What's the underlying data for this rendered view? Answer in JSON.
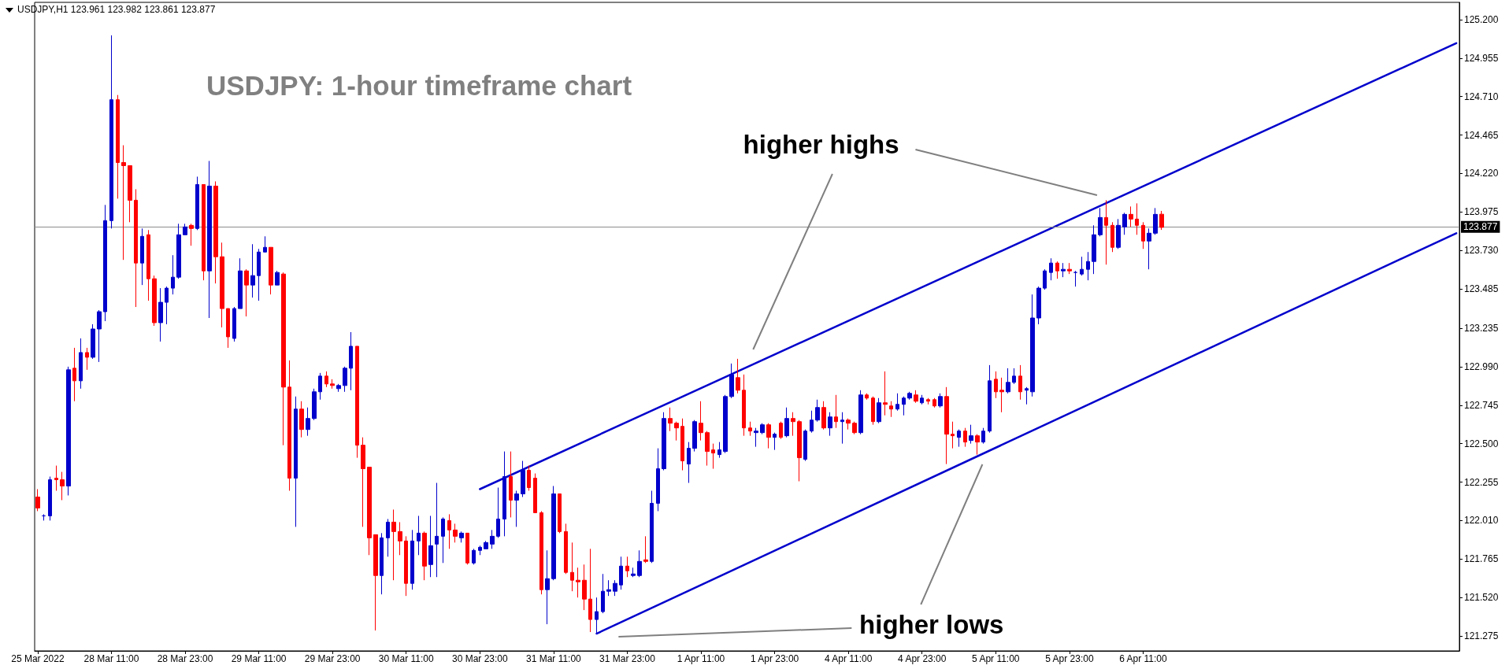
{
  "chart_data": {
    "type": "candlestick",
    "title": "USDJPY: 1-hour timeframe chart",
    "annotations": [
      "USDJPY,H1 123.961 123.982 123.861 123.877",
      "higher highs",
      "higher lows"
    ],
    "categories": [
      "25 Mar 2022",
      null,
      null,
      null,
      null,
      null,
      null,
      null,
      null,
      null,
      null,
      null,
      "28 Mar 11:00",
      null,
      null,
      null,
      null,
      null,
      null,
      null,
      null,
      null,
      null,
      null,
      "28 Mar 23:00",
      null,
      null,
      null,
      null,
      null,
      null,
      null,
      null,
      null,
      null,
      null,
      "29 Mar 11:00",
      null,
      null,
      null,
      null,
      null,
      null,
      null,
      null,
      null,
      null,
      null,
      "29 Mar 23:00",
      null,
      null,
      null,
      null,
      null,
      null,
      null,
      null,
      null,
      null,
      null,
      "30 Mar 11:00",
      null,
      null,
      null,
      null,
      null,
      null,
      null,
      null,
      null,
      null,
      null,
      "30 Mar 23:00",
      null,
      null,
      null,
      null,
      null,
      null,
      null,
      null,
      null,
      null,
      null,
      "31 Mar 11:00",
      null,
      null,
      null,
      null,
      null,
      null,
      null,
      null,
      null,
      null,
      null,
      "31 Mar 23:00",
      null,
      null,
      null,
      null,
      null,
      null,
      null,
      null,
      null,
      null,
      null,
      "1 Apr 11:00",
      null,
      null,
      null,
      null,
      null,
      null,
      null,
      null,
      null,
      null,
      null,
      "1 Apr 23:00",
      null,
      null,
      null,
      null,
      null,
      null,
      null,
      null,
      null,
      null,
      null,
      "4 Apr 11:00",
      null,
      null,
      null,
      null,
      null,
      null,
      null,
      null,
      null,
      null,
      null,
      "4 Apr 23:00",
      null,
      null,
      null,
      null,
      null,
      null,
      null,
      null,
      null,
      null,
      null,
      "5 Apr 11:00",
      null,
      null,
      null,
      null,
      null,
      null,
      null,
      null,
      null,
      null,
      null,
      "5 Apr 23:00",
      null,
      null,
      null,
      null,
      null,
      null,
      null,
      null,
      null,
      null,
      null,
      "6 Apr 11:00",
      null,
      null,
      null,
      null,
      null,
      null,
      null,
      null,
      null,
      null,
      null,
      null,
      null,
      null,
      null,
      null,
      null,
      null,
      null,
      null,
      null,
      null,
      null,
      null,
      null,
      null,
      null,
      null,
      null,
      null,
      null,
      null,
      null,
      null,
      null,
      null,
      null,
      null,
      null,
      null,
      null,
      null,
      null,
      null,
      null,
      null,
      null,
      null,
      null,
      null,
      null
    ],
    "ohlc": [
      [
        122.16,
        122.21,
        122.07,
        122.09
      ],
      [
        122.04,
        122.05,
        122.01,
        122.04
      ],
      [
        122.04,
        122.29,
        122.01,
        122.27
      ],
      [
        122.28,
        122.36,
        122.2,
        122.27
      ],
      [
        122.27,
        122.32,
        122.14,
        122.23
      ],
      [
        122.23,
        122.99,
        122.17,
        122.97
      ],
      [
        122.98,
        123.11,
        122.77,
        122.9
      ],
      [
        122.9,
        123.17,
        122.85,
        123.08
      ],
      [
        123.08,
        123.11,
        122.97,
        123.05
      ],
      [
        123.05,
        123.26,
        123.04,
        123.23
      ],
      [
        123.23,
        123.35,
        123.02,
        123.34
      ],
      [
        123.34,
        124.02,
        123.28,
        123.92
      ],
      [
        123.92,
        125.1,
        123.87,
        124.69
      ],
      [
        124.69,
        124.72,
        124.06,
        124.29
      ],
      [
        124.29,
        124.4,
        123.67,
        124.27
      ],
      [
        124.27,
        124.27,
        123.91,
        124.05
      ],
      [
        124.05,
        124.12,
        123.37,
        123.65
      ],
      [
        123.65,
        123.87,
        123.51,
        123.82
      ],
      [
        123.83,
        123.86,
        123.41,
        123.55
      ],
      [
        123.55,
        123.57,
        123.25,
        123.27
      ],
      [
        123.27,
        123.49,
        123.15,
        123.4
      ],
      [
        123.4,
        123.5,
        123.26,
        123.49
      ],
      [
        123.49,
        123.7,
        123.45,
        123.56
      ],
      [
        123.56,
        123.9,
        123.55,
        123.83
      ],
      [
        123.83,
        123.9,
        123.83,
        123.88
      ],
      [
        123.89,
        123.9,
        123.76,
        123.87
      ],
      [
        123.87,
        124.2,
        123.86,
        124.15
      ],
      [
        124.15,
        124.15,
        123.54,
        123.6
      ],
      [
        123.6,
        124.3,
        123.3,
        124.14
      ],
      [
        124.14,
        124.17,
        123.52,
        123.69
      ],
      [
        123.69,
        123.78,
        123.24,
        123.36
      ],
      [
        123.36,
        123.36,
        123.11,
        123.18
      ],
      [
        123.17,
        123.37,
        123.15,
        123.36
      ],
      [
        123.36,
        123.68,
        123.36,
        123.6
      ],
      [
        123.6,
        123.61,
        123.31,
        123.51
      ],
      [
        123.51,
        123.77,
        123.43,
        123.57
      ],
      [
        123.57,
        123.74,
        123.41,
        123.72
      ],
      [
        123.72,
        123.82,
        123.72,
        123.75
      ],
      [
        123.75,
        123.75,
        123.45,
        123.51
      ],
      [
        123.51,
        123.6,
        123.51,
        123.59
      ],
      [
        123.58,
        123.59,
        122.49,
        122.86
      ],
      [
        122.86,
        123.03,
        122.2,
        122.28
      ],
      [
        122.28,
        122.8,
        121.97,
        122.72
      ],
      [
        122.72,
        122.77,
        122.54,
        122.59
      ],
      [
        122.59,
        122.73,
        122.55,
        122.66
      ],
      [
        122.66,
        122.85,
        122.65,
        122.83
      ],
      [
        122.83,
        122.95,
        122.78,
        122.93
      ],
      [
        122.93,
        122.96,
        122.86,
        122.88
      ],
      [
        122.88,
        122.91,
        122.85,
        122.87
      ],
      [
        122.85,
        122.88,
        122.83,
        122.87
      ],
      [
        122.87,
        122.99,
        122.83,
        122.98
      ],
      [
        122.98,
        123.21,
        122.84,
        123.12
      ],
      [
        123.12,
        123.12,
        122.41,
        122.49
      ],
      [
        122.49,
        122.54,
        121.97,
        122.34
      ],
      [
        122.35,
        122.35,
        121.79,
        121.9
      ],
      [
        121.92,
        121.92,
        121.31,
        121.66
      ],
      [
        121.66,
        121.93,
        121.54,
        121.9
      ],
      [
        121.9,
        122.02,
        121.78,
        122.0
      ],
      [
        122.0,
        122.08,
        121.63,
        121.94
      ],
      [
        121.94,
        122.0,
        121.79,
        121.88
      ],
      [
        121.88,
        121.91,
        121.53,
        121.61
      ],
      [
        121.61,
        121.95,
        121.57,
        121.88
      ],
      [
        121.88,
        122.04,
        121.79,
        121.93
      ],
      [
        121.93,
        121.94,
        121.63,
        121.72
      ],
      [
        121.73,
        122.04,
        121.65,
        121.85
      ],
      [
        121.86,
        122.25,
        121.65,
        121.91
      ],
      [
        121.91,
        122.03,
        121.74,
        122.02
      ],
      [
        122.01,
        122.05,
        121.83,
        121.95
      ],
      [
        121.95,
        121.99,
        121.87,
        121.91
      ],
      [
        121.9,
        121.94,
        121.87,
        121.93
      ],
      [
        121.93,
        121.93,
        121.73,
        121.74
      ],
      [
        121.74,
        121.83,
        121.73,
        121.82
      ],
      [
        121.82,
        121.85,
        121.79,
        121.84
      ],
      [
        121.83,
        121.88,
        121.83,
        121.87
      ],
      [
        121.86,
        121.95,
        121.83,
        121.91
      ],
      [
        121.91,
        122.22,
        121.9,
        122.02
      ],
      [
        122.02,
        122.45,
        121.91,
        122.29
      ],
      [
        122.29,
        122.45,
        122.03,
        122.14
      ],
      [
        122.14,
        122.2,
        121.97,
        122.18
      ],
      [
        122.18,
        122.39,
        122.16,
        122.33
      ],
      [
        122.33,
        122.36,
        122.2,
        122.22
      ],
      [
        122.28,
        122.31,
        122.06,
        122.06
      ],
      [
        122.06,
        122.07,
        121.54,
        121.57
      ],
      [
        121.57,
        121.82,
        121.35,
        121.64
      ],
      [
        121.64,
        122.23,
        121.63,
        122.18
      ],
      [
        122.18,
        122.18,
        121.93,
        121.94
      ],
      [
        121.94,
        121.99,
        121.67,
        121.68
      ],
      [
        121.68,
        121.87,
        121.56,
        121.63
      ],
      [
        121.63,
        121.71,
        121.52,
        121.62
      ],
      [
        121.63,
        121.73,
        121.44,
        121.51
      ],
      [
        121.51,
        121.83,
        121.3,
        121.38
      ],
      [
        121.38,
        121.52,
        121.29,
        121.43
      ],
      [
        121.43,
        121.67,
        121.42,
        121.56
      ],
      [
        121.56,
        121.63,
        121.53,
        121.57
      ],
      [
        121.56,
        121.63,
        121.53,
        121.61
      ],
      [
        121.6,
        121.78,
        121.57,
        121.72
      ],
      [
        121.72,
        121.78,
        121.65,
        121.69
      ],
      [
        121.66,
        121.71,
        121.65,
        121.67
      ],
      [
        121.66,
        121.82,
        121.65,
        121.75
      ],
      [
        121.76,
        121.91,
        121.74,
        121.75
      ],
      [
        121.75,
        122.2,
        121.74,
        122.12
      ],
      [
        122.12,
        122.47,
        122.07,
        122.34
      ],
      [
        122.34,
        122.7,
        122.33,
        122.66
      ],
      [
        122.66,
        122.73,
        122.58,
        122.63
      ],
      [
        122.63,
        122.64,
        122.52,
        122.6
      ],
      [
        122.61,
        122.66,
        122.33,
        122.39
      ],
      [
        122.37,
        122.51,
        122.25,
        122.47
      ],
      [
        122.47,
        122.65,
        122.45,
        122.64
      ],
      [
        122.63,
        122.77,
        122.52,
        122.57
      ],
      [
        122.57,
        122.58,
        122.36,
        122.45
      ],
      [
        122.46,
        122.5,
        122.34,
        122.44
      ],
      [
        122.43,
        122.51,
        122.41,
        122.46
      ],
      [
        122.45,
        122.81,
        122.44,
        122.8
      ],
      [
        122.8,
        123.01,
        122.79,
        122.94
      ],
      [
        122.92,
        123.04,
        122.82,
        122.84
      ],
      [
        122.84,
        122.94,
        122.55,
        122.6
      ],
      [
        122.6,
        122.64,
        122.55,
        122.58
      ],
      [
        122.57,
        122.6,
        122.48,
        122.58
      ],
      [
        122.57,
        122.63,
        122.56,
        122.62
      ],
      [
        122.62,
        122.63,
        122.47,
        122.54
      ],
      [
        122.54,
        122.57,
        122.46,
        122.56
      ],
      [
        122.63,
        122.64,
        122.53,
        122.54
      ],
      [
        122.55,
        122.73,
        122.54,
        122.66
      ],
      [
        122.66,
        122.7,
        122.55,
        122.64
      ],
      [
        122.64,
        122.65,
        122.26,
        122.41
      ],
      [
        122.4,
        122.59,
        122.39,
        122.58
      ],
      [
        122.58,
        122.71,
        122.57,
        122.65
      ],
      [
        122.65,
        122.78,
        122.64,
        122.73
      ],
      [
        122.73,
        122.77,
        122.59,
        122.6
      ],
      [
        122.6,
        122.7,
        122.55,
        122.67
      ],
      [
        122.67,
        122.81,
        122.6,
        122.64
      ],
      [
        122.64,
        122.7,
        122.5,
        122.65
      ],
      [
        122.65,
        122.66,
        122.59,
        122.63
      ],
      [
        122.63,
        122.64,
        122.56,
        122.57
      ],
      [
        122.57,
        122.84,
        122.56,
        122.81
      ],
      [
        122.81,
        122.82,
        122.78,
        122.79
      ],
      [
        122.79,
        122.8,
        122.62,
        122.64
      ],
      [
        122.64,
        122.79,
        122.63,
        122.76
      ],
      [
        122.76,
        122.96,
        122.68,
        122.75
      ],
      [
        122.74,
        122.77,
        122.67,
        122.72
      ],
      [
        122.72,
        122.82,
        122.71,
        122.75
      ],
      [
        122.75,
        122.8,
        122.68,
        122.79
      ],
      [
        122.79,
        122.83,
        122.78,
        122.82
      ],
      [
        122.81,
        122.84,
        122.76,
        122.77
      ],
      [
        122.76,
        122.81,
        122.75,
        122.79
      ],
      [
        122.78,
        122.79,
        122.75,
        122.77
      ],
      [
        122.78,
        122.79,
        122.73,
        122.74
      ],
      [
        122.74,
        122.82,
        122.73,
        122.8
      ],
      [
        122.8,
        122.86,
        122.37,
        122.56
      ],
      [
        122.56,
        122.64,
        122.47,
        122.55
      ],
      [
        122.54,
        122.59,
        122.48,
        122.58
      ],
      [
        122.58,
        122.6,
        122.48,
        122.51
      ],
      [
        122.52,
        122.62,
        122.5,
        122.55
      ],
      [
        122.55,
        122.56,
        122.43,
        122.51
      ],
      [
        122.51,
        122.6,
        122.5,
        122.58
      ],
      [
        122.58,
        123.0,
        122.57,
        122.9
      ],
      [
        122.91,
        122.96,
        122.79,
        122.83
      ],
      [
        122.84,
        122.92,
        122.7,
        122.83
      ],
      [
        122.83,
        122.98,
        122.82,
        122.89
      ],
      [
        122.89,
        122.98,
        122.88,
        122.93
      ],
      [
        122.93,
        123.0,
        122.78,
        122.83
      ],
      [
        122.84,
        122.86,
        122.75,
        122.85
      ],
      [
        122.83,
        123.45,
        122.8,
        123.3
      ],
      [
        123.3,
        123.5,
        123.26,
        123.49
      ],
      [
        123.49,
        123.61,
        123.48,
        123.6
      ],
      [
        123.59,
        123.68,
        123.54,
        123.65
      ],
      [
        123.65,
        123.66,
        123.55,
        123.6
      ],
      [
        123.6,
        123.65,
        123.56,
        123.61
      ],
      [
        123.61,
        123.65,
        123.58,
        123.6
      ],
      [
        123.59,
        123.6,
        123.5,
        123.59
      ],
      [
        123.58,
        123.69,
        123.57,
        123.61
      ],
      [
        123.61,
        123.72,
        123.54,
        123.66
      ],
      [
        123.66,
        123.89,
        123.58,
        123.83
      ],
      [
        123.83,
        124.0,
        123.82,
        123.94
      ],
      [
        123.94,
        124.05,
        123.64,
        123.89
      ],
      [
        123.89,
        123.91,
        123.72,
        123.75
      ],
      [
        123.75,
        123.93,
        123.74,
        123.89
      ],
      [
        123.88,
        123.97,
        123.83,
        123.96
      ],
      [
        123.96,
        124.01,
        123.88,
        123.93
      ],
      [
        123.93,
        124.03,
        123.83,
        123.89
      ],
      [
        123.89,
        123.91,
        123.74,
        123.79
      ],
      [
        123.79,
        123.87,
        123.61,
        123.84
      ],
      [
        123.84,
        124.0,
        123.83,
        123.96
      ],
      [
        123.961,
        123.982,
        123.861,
        123.877
      ],
      null,
      null,
      null,
      null,
      null,
      null,
      null,
      null,
      null,
      null,
      null,
      null,
      null,
      null,
      null,
      null,
      null,
      null,
      null,
      null,
      null,
      null,
      null,
      null,
      null,
      null,
      null,
      null,
      null,
      null,
      null,
      null,
      null,
      null,
      null,
      null,
      null,
      null,
      null,
      null,
      null,
      null,
      null,
      null,
      null,
      null,
      null,
      null
    ],
    "colors": [
      "#ff0000",
      "#0000cc",
      "#0000cc",
      "#ff0000",
      "#ff0000",
      "#0000cc",
      "#ff0000",
      "#0000cc",
      "#ff0000",
      "#0000cc",
      "#0000cc",
      "#0000cc",
      "#0000cc",
      "#ff0000",
      "#ff0000",
      "#ff0000",
      "#ff0000",
      "#0000cc",
      "#ff0000",
      "#ff0000",
      "#0000cc",
      "#0000cc",
      "#0000cc",
      "#0000cc",
      "#0000cc",
      "#ff0000",
      "#0000cc",
      "#ff0000",
      "#0000cc",
      "#ff0000",
      "#ff0000",
      "#ff0000",
      "#0000cc",
      "#0000cc",
      "#ff0000",
      "#0000cc",
      "#0000cc",
      "#0000cc",
      "#ff0000",
      "#0000cc",
      "#ff0000",
      "#ff0000",
      "#0000cc",
      "#ff0000",
      "#0000cc",
      "#0000cc",
      "#0000cc",
      "#ff0000",
      "#ff0000",
      "#0000cc",
      "#0000cc",
      "#0000cc",
      "#ff0000",
      "#ff0000",
      "#ff0000",
      "#ff0000",
      "#0000cc",
      "#0000cc",
      "#ff0000",
      "#ff0000",
      "#ff0000",
      "#0000cc",
      "#0000cc",
      "#ff0000",
      "#0000cc",
      "#0000cc",
      "#0000cc",
      "#ff0000",
      "#ff0000",
      "#0000cc",
      "#ff0000",
      "#0000cc",
      "#0000cc",
      "#0000cc",
      "#0000cc",
      "#0000cc",
      "#0000cc",
      "#ff0000",
      "#0000cc",
      "#0000cc",
      "#ff0000",
      "#ff0000",
      "#ff0000",
      "#0000cc",
      "#0000cc",
      "#ff0000",
      "#ff0000",
      "#ff0000",
      "#ff0000",
      "#ff0000",
      "#ff0000",
      "#0000cc",
      "#0000cc",
      "#0000cc",
      "#0000cc",
      "#0000cc",
      "#ff0000",
      "#0000cc",
      "#0000cc",
      "#ff0000",
      "#0000cc",
      "#0000cc",
      "#0000cc",
      "#ff0000",
      "#ff0000",
      "#ff0000",
      "#0000cc",
      "#0000cc",
      "#ff0000",
      "#ff0000",
      "#ff0000",
      "#0000cc",
      "#0000cc",
      "#0000cc",
      "#ff0000",
      "#ff0000",
      "#ff0000",
      "#0000cc",
      "#0000cc",
      "#ff0000",
      "#0000cc",
      "#ff0000",
      "#0000cc",
      "#ff0000",
      "#ff0000",
      "#0000cc",
      "#0000cc",
      "#0000cc",
      "#ff0000",
      "#0000cc",
      "#ff0000",
      "#0000cc",
      "#ff0000",
      "#ff0000",
      "#0000cc",
      "#ff0000",
      "#ff0000",
      "#0000cc",
      "#ff0000",
      "#ff0000",
      "#0000cc",
      "#0000cc",
      "#0000cc",
      "#ff0000",
      "#0000cc",
      "#ff0000",
      "#ff0000",
      "#0000cc",
      "#ff0000",
      "#ff0000",
      "#0000cc",
      "#ff0000",
      "#0000cc",
      "#ff0000",
      "#0000cc",
      "#0000cc",
      "#ff0000",
      "#ff0000",
      "#0000cc",
      "#0000cc",
      "#ff0000",
      "#0000cc",
      "#0000cc",
      "#0000cc",
      "#0000cc",
      "#0000cc",
      "#ff0000",
      "#0000cc",
      "#ff0000",
      "#0000cc",
      "#0000cc",
      "#0000cc",
      "#0000cc",
      "#0000cc",
      "#ff0000",
      "#ff0000",
      "#0000cc",
      "#0000cc",
      "#ff0000",
      "#ff0000",
      "#ff0000",
      "#0000cc",
      "#0000cc",
      "#ff0000",
      null,
      null,
      null,
      null,
      null,
      null,
      null,
      null,
      null,
      null,
      null,
      null,
      null,
      null,
      null,
      null,
      null,
      null,
      null,
      null,
      null,
      null,
      null,
      null,
      null,
      null,
      null,
      null,
      null,
      null,
      null,
      null,
      null,
      null,
      null,
      null,
      null,
      null,
      null,
      null,
      null,
      null,
      null,
      null,
      null,
      null,
      null,
      null
    ],
    "series": [
      {
        "type": "line",
        "color": "#0000cc",
        "values": [
          null,
          null,
          null,
          null,
          null,
          null,
          null,
          null,
          null,
          null,
          null,
          null,
          null,
          null,
          null,
          null,
          null,
          null,
          null,
          null,
          null,
          null,
          null,
          null,
          null,
          null,
          null,
          null,
          null,
          null,
          null,
          null,
          null,
          null,
          null,
          null,
          null,
          null,
          null,
          null,
          null,
          null,
          null,
          null,
          null,
          null,
          null,
          null,
          null,
          null,
          null,
          null,
          null,
          null,
          null,
          null,
          null,
          null,
          null,
          null,
          null,
          null,
          null,
          null,
          null,
          null,
          null,
          null,
          null,
          null,
          null,
          null,
          122.21,
          null,
          null,
          null,
          null,
          null,
          null,
          null,
          null,
          null,
          null,
          null,
          null,
          null,
          null,
          null,
          null,
          null,
          null,
          null,
          null,
          null,
          null,
          null,
          null,
          null,
          null,
          null,
          null,
          null,
          null,
          null,
          null,
          null,
          null,
          null,
          null,
          null,
          null,
          null,
          null,
          null,
          null,
          null,
          null,
          null,
          null,
          null,
          null,
          null,
          null,
          null,
          null,
          null,
          null,
          null,
          null,
          null,
          null,
          null,
          null,
          null,
          null,
          null,
          null,
          null,
          null,
          null,
          null,
          null,
          null,
          null,
          null,
          null,
          null,
          null,
          null,
          null,
          null,
          null,
          null,
          null,
          null,
          null,
          null,
          null,
          null,
          null,
          null,
          null,
          null,
          null,
          null,
          null,
          null,
          null,
          null,
          null,
          null,
          null,
          null,
          null,
          null,
          null,
          null,
          null,
          null,
          null,
          null,
          null,
          null,
          null,
          null,
          null,
          null,
          null,
          null,
          null,
          null,
          null,
          null,
          null,
          null,
          null,
          null,
          null,
          null,
          null,
          null,
          null,
          null,
          null,
          null,
          null,
          null,
          null,
          null,
          null,
          null,
          null,
          null,
          null,
          null,
          null,
          null,
          null,
          null,
          null,
          null,
          null,
          null,
          null,
          null,
          null,
          null,
          null,
          null,
          null,
          null,
          125.05
        ]
      },
      {
        "type": "line",
        "color": "#0000cc",
        "values": [
          null,
          null,
          null,
          null,
          null,
          null,
          null,
          null,
          null,
          null,
          null,
          null,
          null,
          null,
          null,
          null,
          null,
          null,
          null,
          null,
          null,
          null,
          null,
          null,
          null,
          null,
          null,
          null,
          null,
          null,
          null,
          null,
          null,
          null,
          null,
          null,
          null,
          null,
          null,
          null,
          null,
          null,
          null,
          null,
          null,
          null,
          null,
          null,
          null,
          null,
          null,
          null,
          null,
          null,
          null,
          null,
          null,
          null,
          null,
          null,
          null,
          null,
          null,
          null,
          null,
          null,
          null,
          null,
          null,
          null,
          null,
          null,
          null,
          null,
          null,
          null,
          null,
          null,
          null,
          null,
          null,
          null,
          null,
          null,
          null,
          null,
          null,
          null,
          null,
          null,
          null,
          121.29,
          null,
          null,
          null,
          null,
          null,
          null,
          null,
          null,
          null,
          null,
          null,
          null,
          null,
          null,
          null,
          null,
          null,
          null,
          null,
          null,
          null,
          null,
          null,
          null,
          null,
          null,
          null,
          null,
          null,
          null,
          null,
          null,
          null,
          null,
          null,
          null,
          null,
          null,
          null,
          null,
          null,
          null,
          null,
          null,
          null,
          null,
          null,
          null,
          null,
          null,
          null,
          null,
          null,
          null,
          null,
          null,
          null,
          null,
          null,
          null,
          null,
          null,
          null,
          null,
          null,
          null,
          null,
          null,
          null,
          null,
          null,
          null,
          null,
          null,
          null,
          null,
          null,
          null,
          null,
          null,
          null,
          null,
          null,
          null,
          null,
          null,
          null,
          null,
          null,
          null,
          null,
          null,
          null,
          null,
          null,
          null,
          null,
          null,
          null,
          null,
          null,
          null,
          null,
          null,
          null,
          null,
          null,
          null,
          null,
          null,
          null,
          null,
          null,
          null,
          null,
          null,
          null,
          null,
          null,
          null,
          null,
          null,
          null,
          null,
          null,
          null,
          null,
          null,
          null,
          null,
          null,
          null,
          null,
          null,
          null,
          null,
          null,
          null,
          null,
          123.84
        ]
      }
    ],
    "ref_lines": [
      {
        "axis": "y",
        "value": 123.877,
        "label": "123.877",
        "color": "#8c8c8c"
      }
    ],
    "ylim": [
      121.18,
      125.31
    ],
    "yticks": [
      {
        "value": 121.275,
        "label": "121.275"
      },
      {
        "value": 121.52,
        "label": "121.520"
      },
      {
        "value": 121.765,
        "label": "121.765"
      },
      {
        "value": 122.01,
        "label": "122.010"
      },
      {
        "value": 122.255,
        "label": "122.255"
      },
      {
        "value": 122.5,
        "label": "122.500"
      },
      {
        "value": 122.745,
        "label": "122.745"
      },
      {
        "value": 122.99,
        "label": "122.990"
      },
      {
        "value": 123.235,
        "label": "123.235"
      },
      {
        "value": 123.485,
        "label": "123.485"
      },
      {
        "value": 123.73,
        "label": "123.730"
      },
      {
        "value": 123.975,
        "label": "123.975"
      },
      {
        "value": 124.22,
        "label": "124.220"
      },
      {
        "value": 124.465,
        "label": "124.465"
      },
      {
        "value": 124.71,
        "label": "124.710"
      },
      {
        "value": 124.955,
        "label": "124.955"
      },
      {
        "value": 125.2,
        "label": "125.200"
      }
    ]
  }
}
